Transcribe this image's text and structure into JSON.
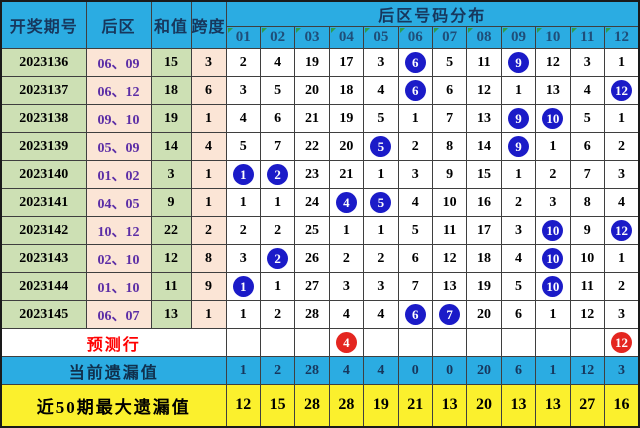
{
  "chart_data": {
    "type": "table",
    "title": "后区号码分布",
    "headers": {
      "period": "开奖期号",
      "rear": "后区",
      "sum": "和值",
      "span": "跨度",
      "distribution": "后区号码分布",
      "columns": [
        "01",
        "02",
        "03",
        "04",
        "05",
        "06",
        "07",
        "08",
        "09",
        "10",
        "11",
        "12"
      ]
    },
    "rows": [
      {
        "period": "2023136",
        "rear": "06、09",
        "sum": "15",
        "span": "3",
        "cells": [
          {
            "v": "2"
          },
          {
            "v": "4"
          },
          {
            "v": "19"
          },
          {
            "v": "17"
          },
          {
            "v": "3"
          },
          {
            "v": "6",
            "ball": "blue"
          },
          {
            "v": "5"
          },
          {
            "v": "11"
          },
          {
            "v": "9",
            "ball": "blue"
          },
          {
            "v": "12"
          },
          {
            "v": "3"
          },
          {
            "v": "1"
          }
        ]
      },
      {
        "period": "2023137",
        "rear": "06、12",
        "sum": "18",
        "span": "6",
        "cells": [
          {
            "v": "3"
          },
          {
            "v": "5"
          },
          {
            "v": "20"
          },
          {
            "v": "18"
          },
          {
            "v": "4"
          },
          {
            "v": "6",
            "ball": "blue"
          },
          {
            "v": "6"
          },
          {
            "v": "12"
          },
          {
            "v": "1"
          },
          {
            "v": "13"
          },
          {
            "v": "4"
          },
          {
            "v": "12",
            "ball": "blue"
          }
        ]
      },
      {
        "period": "2023138",
        "rear": "09、10",
        "sum": "19",
        "span": "1",
        "cells": [
          {
            "v": "4"
          },
          {
            "v": "6"
          },
          {
            "v": "21"
          },
          {
            "v": "19"
          },
          {
            "v": "5"
          },
          {
            "v": "1"
          },
          {
            "v": "7"
          },
          {
            "v": "13"
          },
          {
            "v": "9",
            "ball": "blue"
          },
          {
            "v": "10",
            "ball": "blue"
          },
          {
            "v": "5"
          },
          {
            "v": "1"
          }
        ]
      },
      {
        "period": "2023139",
        "rear": "05、09",
        "sum": "14",
        "span": "4",
        "cells": [
          {
            "v": "5"
          },
          {
            "v": "7"
          },
          {
            "v": "22"
          },
          {
            "v": "20"
          },
          {
            "v": "5",
            "ball": "blue"
          },
          {
            "v": "2"
          },
          {
            "v": "8"
          },
          {
            "v": "14"
          },
          {
            "v": "9",
            "ball": "blue"
          },
          {
            "v": "1"
          },
          {
            "v": "6"
          },
          {
            "v": "2"
          }
        ]
      },
      {
        "period": "2023140",
        "rear": "01、02",
        "sum": "3",
        "span": "1",
        "cells": [
          {
            "v": "1",
            "ball": "blue"
          },
          {
            "v": "2",
            "ball": "blue"
          },
          {
            "v": "23"
          },
          {
            "v": "21"
          },
          {
            "v": "1"
          },
          {
            "v": "3"
          },
          {
            "v": "9"
          },
          {
            "v": "15"
          },
          {
            "v": "1"
          },
          {
            "v": "2"
          },
          {
            "v": "7"
          },
          {
            "v": "3"
          }
        ]
      },
      {
        "period": "2023141",
        "rear": "04、05",
        "sum": "9",
        "span": "1",
        "cells": [
          {
            "v": "1"
          },
          {
            "v": "1"
          },
          {
            "v": "24"
          },
          {
            "v": "4",
            "ball": "blue"
          },
          {
            "v": "5",
            "ball": "blue"
          },
          {
            "v": "4"
          },
          {
            "v": "10"
          },
          {
            "v": "16"
          },
          {
            "v": "2"
          },
          {
            "v": "3"
          },
          {
            "v": "8"
          },
          {
            "v": "4"
          }
        ]
      },
      {
        "period": "2023142",
        "rear": "10、12",
        "sum": "22",
        "span": "2",
        "cells": [
          {
            "v": "2"
          },
          {
            "v": "2"
          },
          {
            "v": "25"
          },
          {
            "v": "1"
          },
          {
            "v": "1"
          },
          {
            "v": "5"
          },
          {
            "v": "11"
          },
          {
            "v": "17"
          },
          {
            "v": "3"
          },
          {
            "v": "10",
            "ball": "blue"
          },
          {
            "v": "9"
          },
          {
            "v": "12",
            "ball": "blue"
          }
        ]
      },
      {
        "period": "2023143",
        "rear": "02、10",
        "sum": "12",
        "span": "8",
        "cells": [
          {
            "v": "3"
          },
          {
            "v": "2",
            "ball": "blue"
          },
          {
            "v": "26"
          },
          {
            "v": "2"
          },
          {
            "v": "2"
          },
          {
            "v": "6"
          },
          {
            "v": "12"
          },
          {
            "v": "18"
          },
          {
            "v": "4"
          },
          {
            "v": "10",
            "ball": "blue"
          },
          {
            "v": "10"
          },
          {
            "v": "1"
          }
        ]
      },
      {
        "period": "2023144",
        "rear": "01、10",
        "sum": "11",
        "span": "9",
        "cells": [
          {
            "v": "1",
            "ball": "blue"
          },
          {
            "v": "1"
          },
          {
            "v": "27"
          },
          {
            "v": "3"
          },
          {
            "v": "3"
          },
          {
            "v": "7"
          },
          {
            "v": "13"
          },
          {
            "v": "19"
          },
          {
            "v": "5"
          },
          {
            "v": "10",
            "ball": "blue"
          },
          {
            "v": "11"
          },
          {
            "v": "2"
          }
        ]
      },
      {
        "period": "2023145",
        "rear": "06、07",
        "sum": "13",
        "span": "1",
        "cells": [
          {
            "v": "1"
          },
          {
            "v": "2"
          },
          {
            "v": "28"
          },
          {
            "v": "4"
          },
          {
            "v": "4"
          },
          {
            "v": "6",
            "ball": "blue"
          },
          {
            "v": "7",
            "ball": "blue"
          },
          {
            "v": "20"
          },
          {
            "v": "6"
          },
          {
            "v": "1"
          },
          {
            "v": "12"
          },
          {
            "v": "3"
          }
        ]
      }
    ],
    "prediction": {
      "label": "预测行",
      "cells": [
        {
          "v": ""
        },
        {
          "v": ""
        },
        {
          "v": ""
        },
        {
          "v": "4",
          "ball": "red"
        },
        {
          "v": ""
        },
        {
          "v": ""
        },
        {
          "v": ""
        },
        {
          "v": ""
        },
        {
          "v": ""
        },
        {
          "v": ""
        },
        {
          "v": ""
        },
        {
          "v": "12",
          "ball": "red"
        }
      ]
    },
    "current_omission": {
      "label": "当前遗漏值",
      "values": [
        "1",
        "2",
        "28",
        "4",
        "4",
        "0",
        "0",
        "20",
        "6",
        "1",
        "12",
        "3"
      ]
    },
    "max_omission": {
      "label": "近50期最大遗漏值",
      "values": [
        "12",
        "15",
        "28",
        "28",
        "19",
        "21",
        "13",
        "20",
        "13",
        "13",
        "27",
        "16"
      ]
    },
    "colors": {
      "header_blue": "#2BACE2",
      "pale_green": "#CDE0B4",
      "pale_pink": "#FBE5D6",
      "yellow": "#FBF02D",
      "ball_blue": "#1B1BC8",
      "ball_red": "#E42620",
      "prediction_red": "#FF0000",
      "header_text": "#17375D",
      "rear_text": "#5B2DA6",
      "marker_green": "#2E9E4F"
    }
  }
}
